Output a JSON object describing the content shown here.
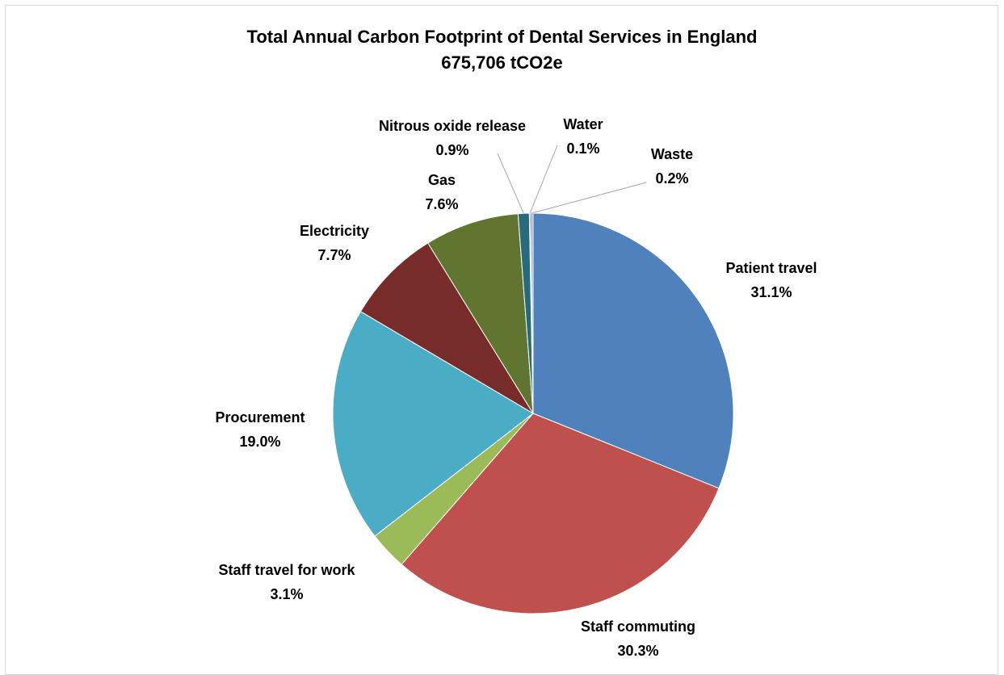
{
  "chart_data": {
    "type": "pie",
    "title": "Total Annual Carbon Footprint of Dental Services in England",
    "subtitle": "675,706 tCO2e",
    "slices": [
      {
        "label": "Patient travel",
        "value_text": "31.1%",
        "value": 31.1,
        "color": "#4f81bd"
      },
      {
        "label": "Staff commuting",
        "value_text": "30.3%",
        "value": 30.3,
        "color": "#c0504d"
      },
      {
        "label": "Staff travel for work",
        "value_text": "3.1%",
        "value": 3.1,
        "color": "#9bbb59"
      },
      {
        "label": "Procurement",
        "value_text": "19.0%",
        "value": 19.0,
        "color": "#4bacc6"
      },
      {
        "label": "Electricity",
        "value_text": "7.7%",
        "value": 7.7,
        "color": "#772c2a"
      },
      {
        "label": "Gas",
        "value_text": "7.6%",
        "value": 7.6,
        "color": "#5f7530"
      },
      {
        "label": "Nitrous oxide release",
        "value_text": "0.9%",
        "value": 0.9,
        "color": "#276a7c"
      },
      {
        "label": "Water",
        "value_text": "0.1%",
        "value": 0.1,
        "color": "#b65708"
      },
      {
        "label": "Waste",
        "value_text": "0.2%",
        "value": 0.2,
        "color": "#8ea9db"
      }
    ]
  }
}
